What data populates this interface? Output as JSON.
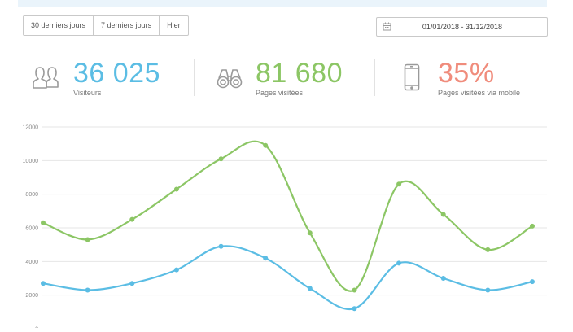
{
  "toolbar": {
    "quick_ranges": [
      "30 derniers jours",
      "7 derniers jours",
      "Hier"
    ],
    "date_range": "01/01/2018 - 31/12/2018"
  },
  "stats": {
    "visitors": {
      "value": "36 025",
      "label": "Visiteurs",
      "color": "#5bbde4",
      "icon": "users-icon"
    },
    "pages": {
      "value": "81 680",
      "label": "Pages visitées",
      "color": "#8cc665",
      "icon": "binoculars-icon"
    },
    "mobile": {
      "value": "35%",
      "label": "Pages visitées via mobile",
      "color": "#f08c7c",
      "icon": "mobile-phone-icon"
    }
  },
  "chart_data": {
    "type": "line",
    "ylim": [
      0,
      12000
    ],
    "yticks": [
      "0",
      "2000",
      "4000",
      "6000",
      "8000",
      "10000",
      "12000"
    ],
    "x": [
      1,
      2,
      3,
      4,
      5,
      6,
      7,
      8,
      9,
      10,
      11,
      12
    ],
    "grid": true,
    "series": [
      {
        "key": "pages",
        "color": "#8cc665",
        "values": [
          6300,
          5300,
          6500,
          8300,
          10100,
          10900,
          5700,
          2300,
          8600,
          6800,
          4700,
          6100
        ]
      },
      {
        "key": "visitors",
        "color": "#5bbde4",
        "values": [
          2700,
          2300,
          2700,
          3500,
          4900,
          4200,
          2400,
          1200,
          3900,
          3000,
          2300,
          2800
        ]
      }
    ]
  }
}
